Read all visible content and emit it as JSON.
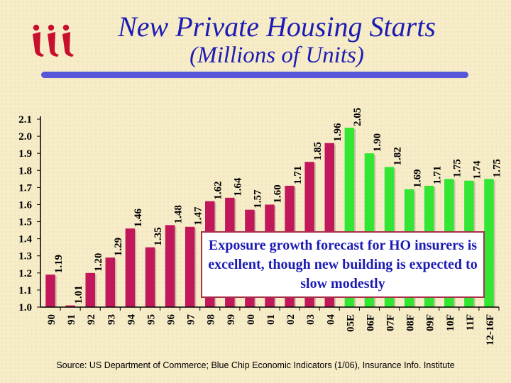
{
  "title": "New Private Housing Starts",
  "subtitle": "(Millions of Units)",
  "logo": {
    "icon": "iii-logo-icon",
    "text": "iii",
    "color": "#c8102e"
  },
  "callout": "Exposure growth forecast for HO insurers is excellent, though new building is expected to slow modestly",
  "source": "Source: US Department of Commerce; Blue Chip Economic Indicators (1/06), Insurance Info. Institute",
  "colors": {
    "actual": "#c2185b",
    "forecast": "#33e633",
    "title": "#1c1cb4"
  },
  "chart_data": {
    "type": "bar",
    "categories": [
      "90",
      "91",
      "92",
      "93",
      "94",
      "95",
      "96",
      "97",
      "98",
      "99",
      "00",
      "01",
      "02",
      "03",
      "04",
      "05E",
      "06F",
      "07F",
      "08F",
      "09F",
      "10F",
      "11F",
      "12-16F"
    ],
    "values": [
      1.19,
      1.01,
      1.2,
      1.29,
      1.46,
      1.35,
      1.48,
      1.47,
      1.62,
      1.64,
      1.57,
      1.6,
      1.71,
      1.85,
      1.96,
      2.05,
      1.9,
      1.82,
      1.69,
      1.71,
      1.75,
      1.74,
      1.75
    ],
    "value_labels": [
      "1.19",
      "1.01",
      "1.20",
      "1.29",
      "1.46",
      "1.35",
      "1.48",
      "1.47",
      "1.62",
      "1.64",
      "1.57",
      "1.60",
      "1.71",
      "1.85",
      "1.96",
      "2.05",
      "1.90",
      "1.82",
      "1.69",
      "1.71",
      "1.75",
      "1.74",
      "1.75"
    ],
    "forecast": [
      false,
      false,
      false,
      false,
      false,
      false,
      false,
      false,
      false,
      false,
      false,
      false,
      false,
      false,
      false,
      true,
      true,
      true,
      true,
      true,
      true,
      true,
      true
    ],
    "ylim": [
      1.0,
      2.1
    ],
    "yticks": [
      "1.0",
      "1.1",
      "1.2",
      "1.3",
      "1.4",
      "1.5",
      "1.6",
      "1.7",
      "1.8",
      "1.9",
      "2.0",
      "2.1"
    ],
    "grid": false,
    "legend": "none"
  }
}
